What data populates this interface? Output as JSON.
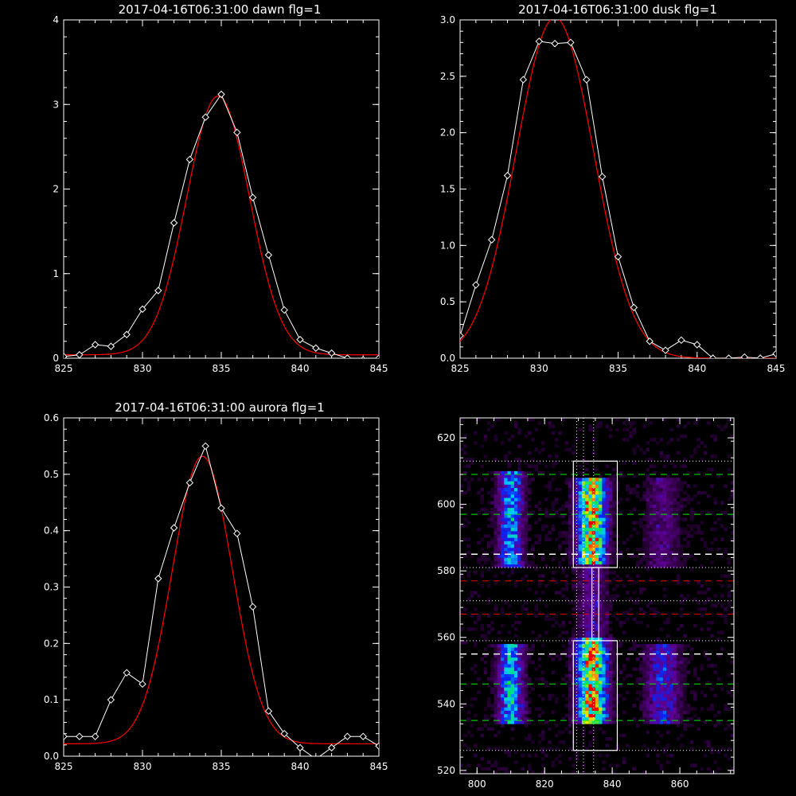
{
  "colors": {
    "background": "#000000",
    "axes": "#ffffff",
    "observed": "#ffffff",
    "fit": "#ff0000",
    "green_line": "#00ee00",
    "red_line": "#dd0000",
    "white_line": "#ffffff"
  },
  "chart_data": [
    {
      "type": "line",
      "title": "2017-04-16T06:31:00 dawn flg=1",
      "xlim": [
        825,
        845
      ],
      "ylim": [
        0,
        4
      ],
      "xticks": [
        825,
        830,
        835,
        840,
        845
      ],
      "yticks": [
        0,
        1,
        2,
        3,
        4
      ],
      "ytick_labels": [
        "0",
        "1",
        "2",
        "3",
        "4"
      ],
      "observed": {
        "x": [
          825,
          826,
          827,
          828,
          829,
          830,
          831,
          832,
          833,
          834,
          835,
          836,
          837,
          838,
          839,
          840,
          841,
          842,
          843,
          844,
          845
        ],
        "y": [
          0.02,
          0.04,
          0.16,
          0.14,
          0.28,
          0.58,
          0.8,
          1.6,
          2.35,
          2.85,
          3.12,
          2.67,
          1.9,
          1.22,
          0.57,
          0.22,
          0.12,
          0.06,
          0.0,
          -0.02,
          0.0
        ]
      },
      "fit": {
        "amplitude": 3.06,
        "center": 834.8,
        "sigma": 2.0,
        "offset": 0.04
      }
    },
    {
      "type": "line",
      "title": "2017-04-16T06:31:00 dusk flg=1",
      "xlim": [
        825,
        845
      ],
      "ylim": [
        0,
        3
      ],
      "xticks": [
        825,
        830,
        835,
        840,
        845
      ],
      "yticks": [
        0,
        0.5,
        1.0,
        1.5,
        2.0,
        2.5,
        3.0
      ],
      "ytick_labels": [
        "0.0",
        "0.5",
        "1.0",
        "1.5",
        "2.0",
        "2.5",
        "3.0"
      ],
      "observed": {
        "x": [
          825,
          826,
          827,
          828,
          829,
          830,
          831,
          832,
          833,
          834,
          835,
          836,
          837,
          838,
          839,
          840,
          841,
          842,
          843,
          844,
          845
        ],
        "y": [
          0.2,
          0.65,
          1.05,
          1.62,
          2.47,
          2.81,
          2.79,
          2.8,
          2.47,
          1.61,
          0.9,
          0.45,
          0.15,
          0.07,
          0.16,
          0.12,
          0.0,
          0.0,
          0.01,
          0.0,
          0.04
        ]
      },
      "fit": {
        "amplitude": 3.02,
        "center": 831.0,
        "sigma": 2.45,
        "offset": 0.0
      }
    },
    {
      "type": "line",
      "title": "2017-04-16T06:31:00 aurora flg=1",
      "xlim": [
        825,
        845
      ],
      "ylim": [
        0,
        0.6
      ],
      "xticks": [
        825,
        830,
        835,
        840,
        845
      ],
      "yticks": [
        0,
        0.1,
        0.2,
        0.3,
        0.4,
        0.5,
        0.6
      ],
      "ytick_labels": [
        "0.0",
        "0.1",
        "0.2",
        "0.3",
        "0.4",
        "0.5",
        "0.6"
      ],
      "observed": {
        "x": [
          825,
          826,
          827,
          828,
          829,
          830,
          831,
          832,
          833,
          834,
          835,
          836,
          837,
          838,
          839,
          840,
          841,
          842,
          843,
          844,
          845
        ],
        "y": [
          0.035,
          0.035,
          0.035,
          0.1,
          0.148,
          0.128,
          0.315,
          0.405,
          0.485,
          0.55,
          0.44,
          0.395,
          0.265,
          0.08,
          0.04,
          0.015,
          -0.005,
          0.015,
          0.035,
          0.035,
          0.018
        ]
      },
      "fit": {
        "amplitude": 0.51,
        "center": 833.8,
        "sigma": 1.9,
        "offset": 0.022
      }
    },
    {
      "type": "heatmap",
      "title": "",
      "xlim": [
        795,
        876
      ],
      "ylim": [
        519,
        626
      ],
      "xticks": [
        800,
        820,
        840,
        860
      ],
      "yticks": [
        520,
        540,
        560,
        580,
        600,
        620
      ],
      "ytick_labels": [
        "520",
        "540",
        "560",
        "580",
        "600",
        "620"
      ],
      "vertical_dotted_lines": [
        829.5,
        831.5,
        834.5
      ],
      "horizontal_dotted_lines": [
        526,
        559,
        571,
        581,
        613
      ],
      "green_dashed_lines": [
        535,
        546,
        597,
        609
      ],
      "white_dashed_lines": [
        555,
        585
      ],
      "red_dashed_lines": [
        567,
        577
      ],
      "boxes": [
        {
          "x": [
            828.5,
            841.5
          ],
          "y": [
            526,
            559
          ]
        },
        {
          "x": [
            828.5,
            841.5
          ],
          "y": [
            581,
            613
          ]
        },
        {
          "x": [
            834.0,
            836.0
          ],
          "y": [
            559,
            581
          ]
        }
      ],
      "bands": [
        {
          "x_center": 810,
          "x_width": 2.5,
          "segments": [
            [
              534,
              558,
              0.6
            ],
            [
              581,
              610,
              0.55
            ]
          ]
        },
        {
          "x_center": 834,
          "x_width": 3.0,
          "segments": [
            [
              534,
              560,
              1.0
            ],
            [
              582,
              608,
              0.95
            ],
            [
              560,
              582,
              0.25
            ]
          ]
        },
        {
          "x_center": 855,
          "x_width": 3.5,
          "segments": [
            [
              534,
              558,
              0.35
            ],
            [
              581,
              608,
              0.2
            ]
          ]
        }
      ]
    }
  ]
}
